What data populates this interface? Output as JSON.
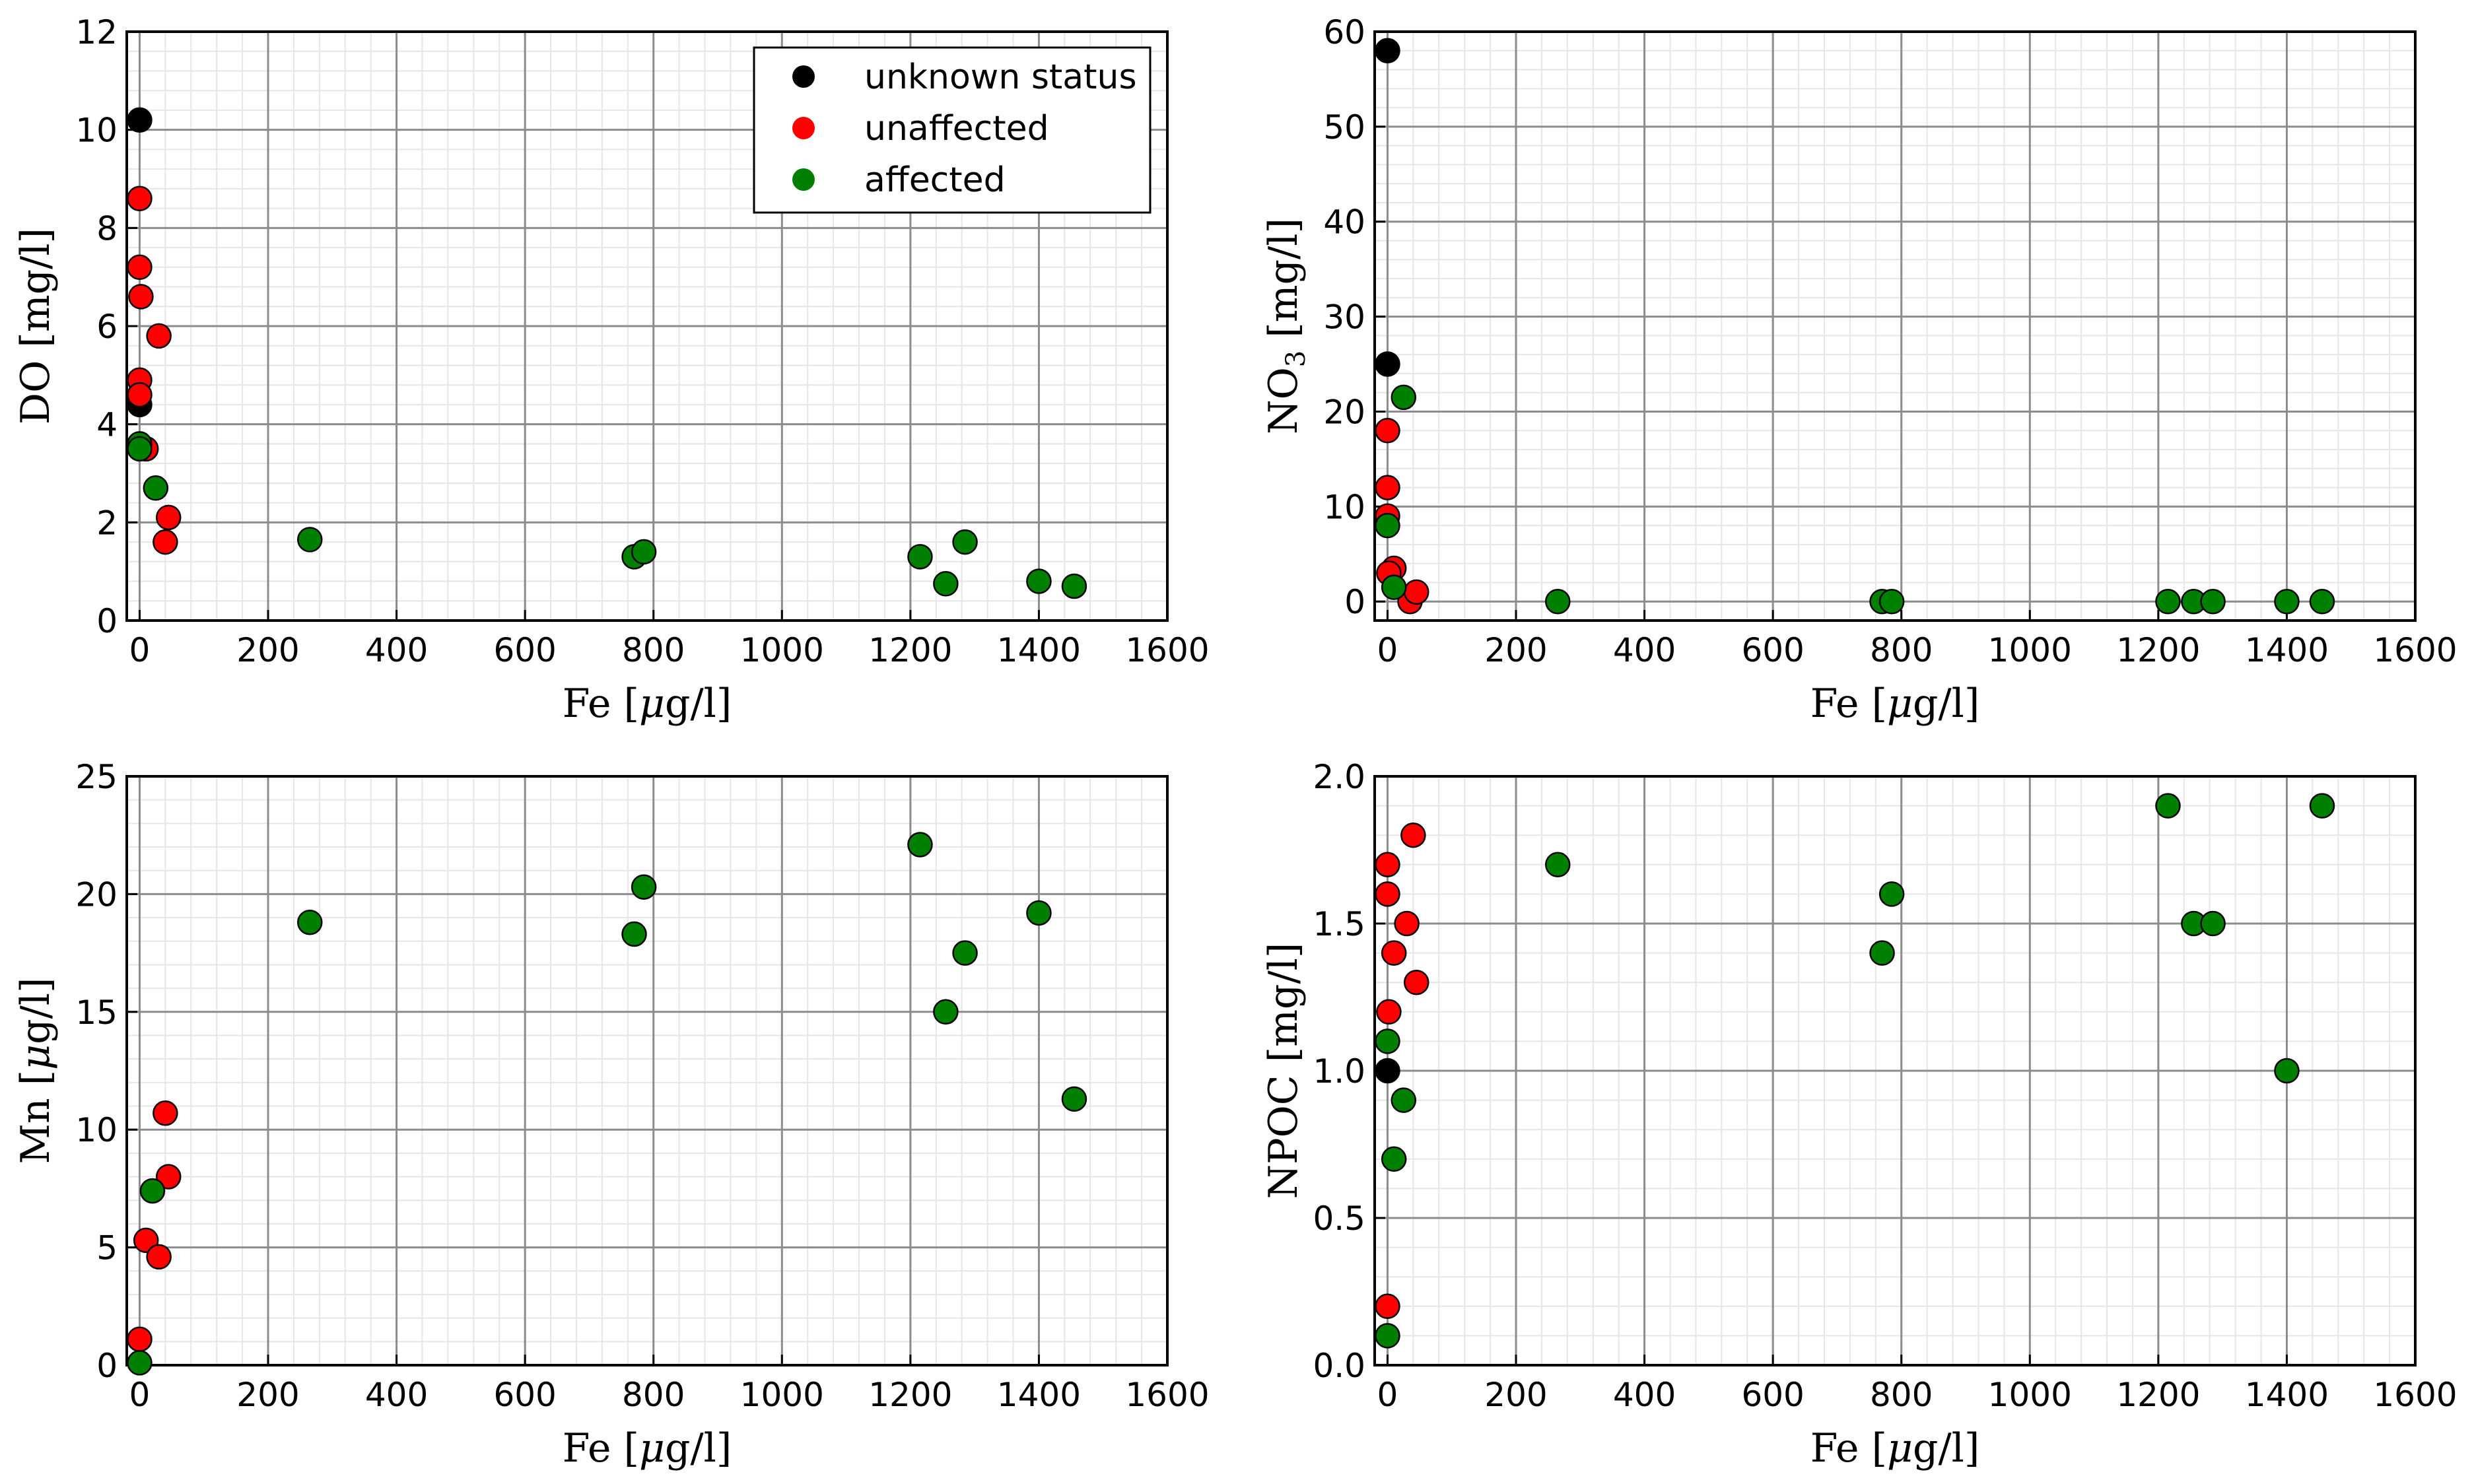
{
  "figure": {
    "legend": [
      {
        "label": "unknown status",
        "color": "#000000"
      },
      {
        "label": "unaffected",
        "color": "#ff0000"
      },
      {
        "label": "affected",
        "color": "#008000"
      }
    ]
  },
  "chart_data": [
    {
      "type": "scatter",
      "xlabel": "Fe [μg/l]",
      "ylabel": "DO [mg/l]",
      "xlim": [
        -20,
        1600
      ],
      "ylim": [
        0,
        12
      ],
      "xticks": [
        0,
        200,
        400,
        600,
        800,
        1000,
        1200,
        1400,
        1600
      ],
      "yticks": [
        0,
        2,
        4,
        6,
        8,
        10,
        12
      ],
      "grid": true,
      "legend_position": "top-right",
      "series": [
        {
          "name": "unknown status",
          "color": "#000000",
          "points": [
            [
              0,
              10.2
            ],
            [
              0,
              4.4
            ]
          ]
        },
        {
          "name": "unaffected",
          "color": "#ff0000",
          "points": [
            [
              0,
              8.6
            ],
            [
              0,
              7.2
            ],
            [
              2,
              6.6
            ],
            [
              30,
              5.8
            ],
            [
              0,
              4.9
            ],
            [
              0,
              4.6
            ],
            [
              10,
              3.5
            ],
            [
              45,
              2.1
            ],
            [
              40,
              1.6
            ]
          ]
        },
        {
          "name": "affected",
          "color": "#008000",
          "points": [
            [
              0,
              3.6
            ],
            [
              0,
              3.5
            ],
            [
              25,
              2.7
            ],
            [
              265,
              1.65
            ],
            [
              770,
              1.3
            ],
            [
              785,
              1.4
            ],
            [
              1215,
              1.3
            ],
            [
              1255,
              0.75
            ],
            [
              1285,
              1.6
            ],
            [
              1400,
              0.8
            ],
            [
              1455,
              0.7
            ]
          ]
        }
      ]
    },
    {
      "type": "scatter",
      "xlabel": "Fe [μg/l]",
      "ylabel": "NO3 [mg/l]",
      "xlim": [
        -20,
        1600
      ],
      "ylim": [
        -2,
        60
      ],
      "xticks": [
        0,
        200,
        400,
        600,
        800,
        1000,
        1200,
        1400,
        1600
      ],
      "yticks": [
        0,
        10,
        20,
        30,
        40,
        50,
        60
      ],
      "grid": true,
      "series": [
        {
          "name": "unknown status",
          "color": "#000000",
          "points": [
            [
              0,
              58
            ],
            [
              0,
              25
            ]
          ]
        },
        {
          "name": "unaffected",
          "color": "#ff0000",
          "points": [
            [
              0,
              18
            ],
            [
              0,
              12
            ],
            [
              0,
              9
            ],
            [
              10,
              3.5
            ],
            [
              2,
              3
            ],
            [
              35,
              0
            ],
            [
              45,
              1
            ]
          ]
        },
        {
          "name": "affected",
          "color": "#008000",
          "points": [
            [
              25,
              21.5
            ],
            [
              0,
              8
            ],
            [
              10,
              1.5
            ],
            [
              265,
              0
            ],
            [
              770,
              0
            ],
            [
              785,
              0
            ],
            [
              1215,
              0
            ],
            [
              1255,
              0
            ],
            [
              1285,
              0
            ],
            [
              1400,
              0
            ],
            [
              1455,
              0
            ]
          ]
        }
      ]
    },
    {
      "type": "scatter",
      "xlabel": "Fe [μg/l]",
      "ylabel": "Mn [μg/l]",
      "xlim": [
        -20,
        1600
      ],
      "ylim": [
        0,
        25
      ],
      "xticks": [
        0,
        200,
        400,
        600,
        800,
        1000,
        1200,
        1400,
        1600
      ],
      "yticks": [
        0,
        5,
        10,
        15,
        20,
        25
      ],
      "grid": true,
      "series": [
        {
          "name": "unknown status",
          "color": "#000000",
          "points": []
        },
        {
          "name": "unaffected",
          "color": "#ff0000",
          "points": [
            [
              40,
              10.7
            ],
            [
              45,
              8
            ],
            [
              10,
              5.3
            ],
            [
              30,
              4.6
            ],
            [
              0,
              1.1
            ]
          ]
        },
        {
          "name": "affected",
          "color": "#008000",
          "points": [
            [
              20,
              7.4
            ],
            [
              0,
              0.1
            ],
            [
              265,
              18.8
            ],
            [
              770,
              18.3
            ],
            [
              785,
              20.3
            ],
            [
              1215,
              22.1
            ],
            [
              1255,
              15
            ],
            [
              1285,
              17.5
            ],
            [
              1400,
              19.2
            ],
            [
              1455,
              11.3
            ]
          ]
        }
      ]
    },
    {
      "type": "scatter",
      "xlabel": "Fe [μg/l]",
      "ylabel": "NPOC [mg/l]",
      "xlim": [
        -20,
        1600
      ],
      "ylim": [
        0,
        2.0
      ],
      "xticks": [
        0,
        200,
        400,
        600,
        800,
        1000,
        1200,
        1400,
        1600
      ],
      "yticks": [
        0.0,
        0.5,
        1.0,
        1.5,
        2.0
      ],
      "ytick_labels": [
        "0.0",
        "0.5",
        "1.0",
        "1.5",
        "2.0"
      ],
      "grid": true,
      "series": [
        {
          "name": "unknown status",
          "color": "#000000",
          "points": [
            [
              0,
              1.0
            ]
          ]
        },
        {
          "name": "unaffected",
          "color": "#ff0000",
          "points": [
            [
              0,
              1.7
            ],
            [
              0,
              1.6
            ],
            [
              30,
              1.5
            ],
            [
              10,
              1.4
            ],
            [
              45,
              1.3
            ],
            [
              2,
              1.2
            ],
            [
              40,
              1.8
            ],
            [
              0,
              0.2
            ]
          ]
        },
        {
          "name": "affected",
          "color": "#008000",
          "points": [
            [
              0,
              1.1
            ],
            [
              25,
              0.9
            ],
            [
              10,
              0.7
            ],
            [
              0,
              0.1
            ],
            [
              265,
              1.7
            ],
            [
              770,
              1.4
            ],
            [
              785,
              1.6
            ],
            [
              1215,
              1.9
            ],
            [
              1255,
              1.5
            ],
            [
              1285,
              1.5
            ],
            [
              1400,
              1.0
            ],
            [
              1455,
              1.9
            ]
          ]
        }
      ]
    }
  ]
}
